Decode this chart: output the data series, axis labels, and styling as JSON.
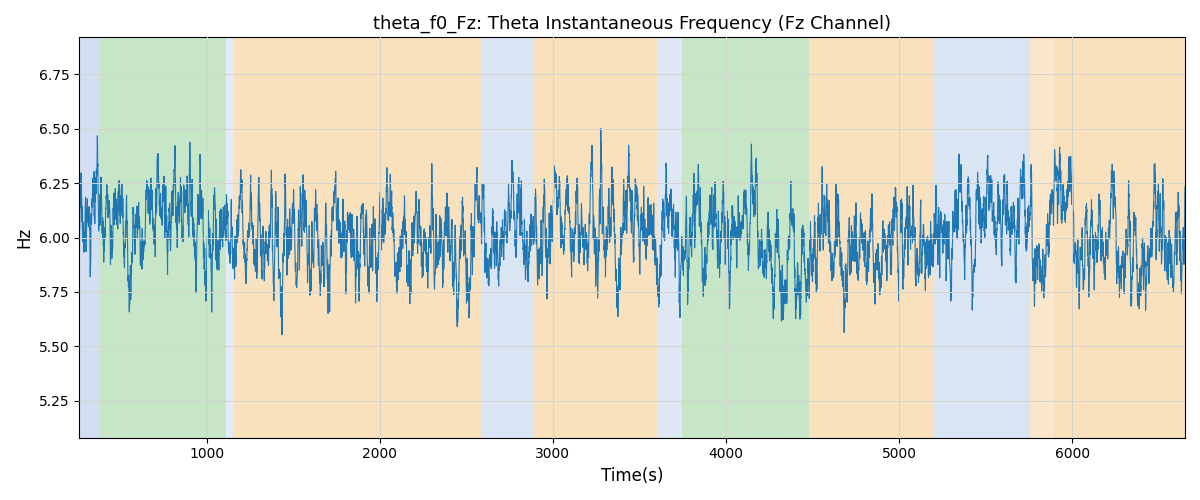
{
  "title": "theta_f0_Fz: Theta Instantaneous Frequency (Fz Channel)",
  "xlabel": "Time(s)",
  "ylabel": "Hz",
  "xlim": [
    263,
    6652
  ],
  "ylim": [
    5.08,
    6.92
  ],
  "line_color": "#1f77b4",
  "line_width": 0.8,
  "bg_bands": [
    {
      "xmin": 263,
      "xmax": 380,
      "color": "#aec6e8",
      "alpha": 0.55
    },
    {
      "xmin": 380,
      "xmax": 1110,
      "color": "#90cc90",
      "alpha": 0.5
    },
    {
      "xmin": 1110,
      "xmax": 1155,
      "color": "#aec6e8",
      "alpha": 0.35
    },
    {
      "xmin": 1155,
      "xmax": 2590,
      "color": "#f5c98a",
      "alpha": 0.55
    },
    {
      "xmin": 2590,
      "xmax": 2885,
      "color": "#aec6e8",
      "alpha": 0.45
    },
    {
      "xmin": 2885,
      "xmax": 3610,
      "color": "#f5c98a",
      "alpha": 0.55
    },
    {
      "xmin": 3610,
      "xmax": 3745,
      "color": "#aec6e8",
      "alpha": 0.4
    },
    {
      "xmin": 3745,
      "xmax": 4480,
      "color": "#90cc90",
      "alpha": 0.5
    },
    {
      "xmin": 4480,
      "xmax": 4695,
      "color": "#f5c98a",
      "alpha": 0.55
    },
    {
      "xmin": 4695,
      "xmax": 5195,
      "color": "#f5c98a",
      "alpha": 0.55
    },
    {
      "xmin": 5195,
      "xmax": 5755,
      "color": "#aec6e8",
      "alpha": 0.45
    },
    {
      "xmin": 5755,
      "xmax": 5895,
      "color": "#f5c98a",
      "alpha": 0.45
    },
    {
      "xmin": 5895,
      "xmax": 6652,
      "color": "#f5c98a",
      "alpha": 0.55
    }
  ],
  "seed": 17,
  "n_points": 6400,
  "yticks": [
    5.25,
    5.5,
    5.75,
    6.0,
    6.25,
    6.5,
    6.75
  ],
  "xticks": [
    1000,
    2000,
    3000,
    4000,
    5000,
    6000
  ],
  "figsize": [
    12.0,
    5.0
  ],
  "dpi": 100
}
